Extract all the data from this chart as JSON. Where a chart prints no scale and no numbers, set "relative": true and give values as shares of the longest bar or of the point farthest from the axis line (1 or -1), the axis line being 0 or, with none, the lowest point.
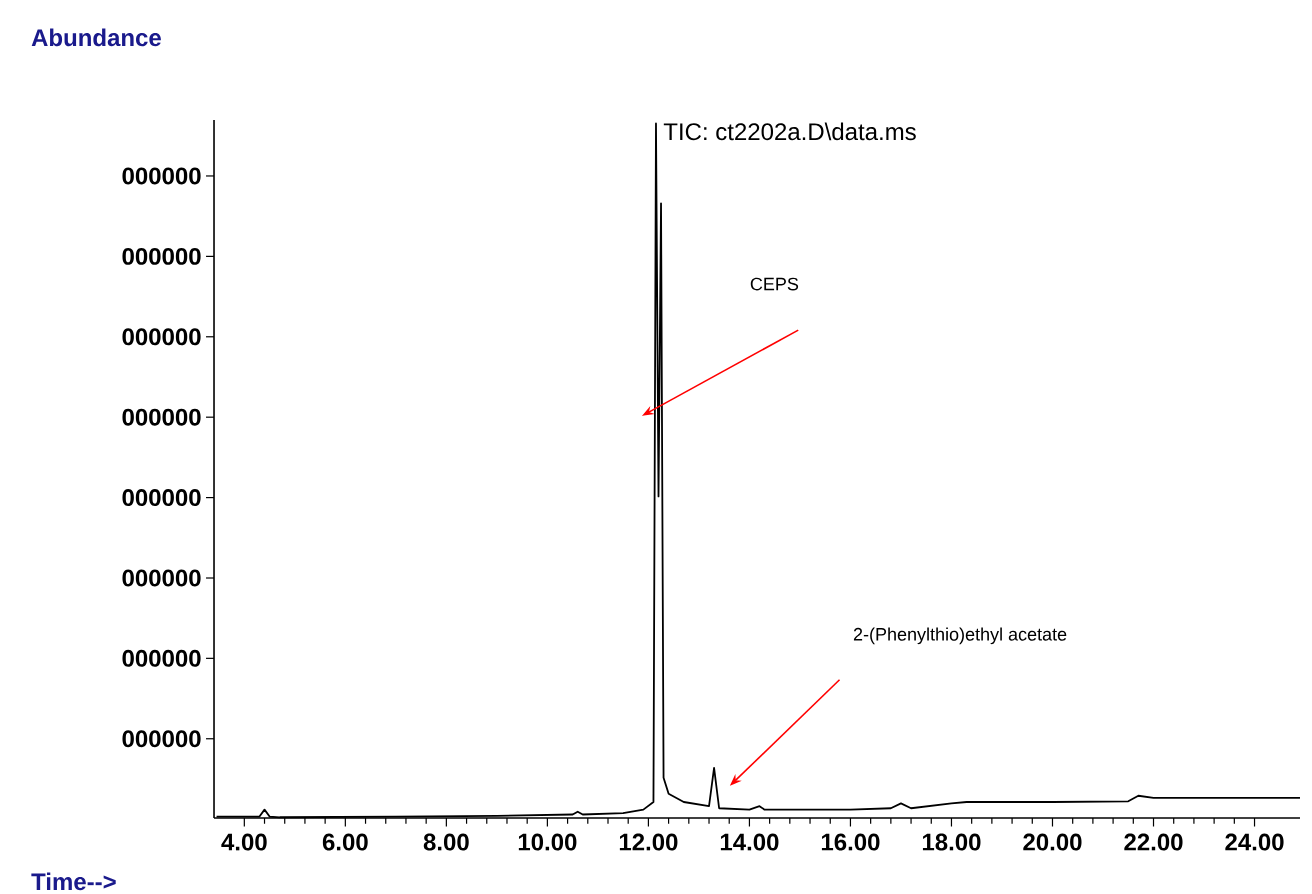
{
  "chart_data": {
    "type": "line",
    "title": "TIC: ct2202a.D\\data.ms",
    "ylabel": "Abundance",
    "xlabel": "Time-->",
    "relative": true,
    "x": [
      3.45,
      4.3,
      4.4,
      4.5,
      4.7,
      7,
      9,
      10.5,
      10.6,
      10.7,
      11.5,
      11.9,
      12.1,
      12.15,
      12.2,
      12.25,
      12.3,
      12.4,
      12.7,
      13.2,
      13.3,
      13.4,
      14,
      14.2,
      14.3,
      16,
      16.8,
      17,
      17.2,
      18,
      18.3,
      20,
      21.5,
      21.7,
      22,
      22.5,
      24.9
    ],
    "series": [
      {
        "color": "#000000",
        "values": [
          0.002,
          0.002,
          0.012,
          0.002,
          0.001,
          0.002,
          0.003,
          0.005,
          0.009,
          0.005,
          0.007,
          0.012,
          0.023,
          1,
          0.463,
          0.885,
          0.058,
          0.035,
          0.023,
          0.017,
          0.072,
          0.014,
          0.012,
          0.017,
          0.012,
          0.012,
          0.014,
          0.021,
          0.014,
          0.021,
          0.023,
          0.023,
          0.024,
          0.032,
          0.029,
          0.029,
          0.029
        ]
      }
    ],
    "xlim": [
      3.4,
      24.9
    ],
    "xticks": [
      {
        "value": 4,
        "label": "4.00"
      },
      {
        "value": 6,
        "label": "6.00"
      },
      {
        "value": 8,
        "label": "8.00"
      },
      {
        "value": 10,
        "label": "10.00"
      },
      {
        "value": 12,
        "label": "12.00"
      },
      {
        "value": 14,
        "label": "14.00"
      },
      {
        "value": 16,
        "label": "16.00"
      },
      {
        "value": 18,
        "label": "18.00"
      },
      {
        "value": 20,
        "label": "20.00"
      },
      {
        "value": 22,
        "label": "22.00"
      },
      {
        "value": 24,
        "label": "24.00"
      }
    ],
    "annotations": [
      "000000",
      "000000",
      "000000",
      "000000",
      "000000",
      "000000",
      "000000",
      "000000",
      "CEPS",
      "2-(Phenylthio)ethyl acetate"
    ]
  }
}
